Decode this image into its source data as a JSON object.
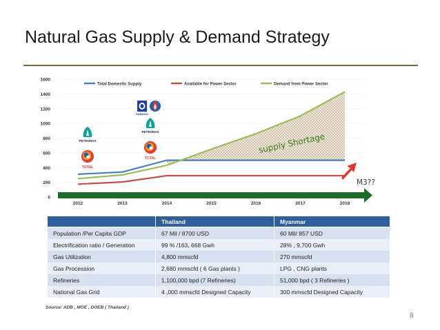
{
  "slide": {
    "title": "Natural Gas Supply & Demand Strategy",
    "page_number": "8",
    "source": "Source: ADB , MOE , DOEB ( Thailand )"
  },
  "colors": {
    "supply": "#4a7ebb",
    "power": "#c0504d",
    "demand": "#9bbb59",
    "arrow": "#1e6b2a",
    "shortage_text": "#3a7a1a",
    "red_arrow": "#d9382d",
    "table_header": "#2f5f9a"
  },
  "logos": {
    "petronas": "PETRONAS",
    "total": "TOTAL",
    "daewoo": "DAEWOO"
  },
  "chart_data": {
    "type": "line",
    "x": [
      2012,
      2013,
      2014,
      2015,
      2016,
      2017,
      2018
    ],
    "series": [
      {
        "name": "Total Domestic Supply",
        "values": [
          310,
          340,
          500,
          500,
          500,
          500,
          500
        ]
      },
      {
        "name": "Available for Power Sector",
        "values": [
          175,
          205,
          290,
          290,
          290,
          290,
          290
        ]
      },
      {
        "name": "Demand from Power Sector",
        "values": [
          250,
          300,
          430,
          650,
          860,
          1100,
          1430
        ]
      }
    ],
    "ylim": [
      0,
      1600
    ],
    "yticks": [
      "0",
      "200",
      "400",
      "600",
      "800",
      "1000",
      "1200",
      "1400",
      "1600"
    ],
    "xticks": [
      "2012",
      "2013",
      "2014",
      "2015",
      "2016",
      "2017",
      "2018"
    ],
    "legend_position": "top",
    "annotations": {
      "shortage": "supply Shortage",
      "m3": "M3??"
    }
  },
  "table": {
    "headers": [
      "",
      "Thailand",
      "Myanmar"
    ],
    "rows": [
      [
        "Population /Per Capita GDP",
        "67    Mil / 8700 USD",
        "60 Mil/ 857 USD"
      ],
      [
        "Electrification ratio /  Generation",
        "99 % /163, 668 Gwh",
        "28% , 9,700 Gwh"
      ],
      [
        "Gas Utilization",
        "4,800 mmscfd",
        "270 mmscfd"
      ],
      [
        "Gas Procession",
        "2,680 mmscfd  ( 6 Gas plants )",
        "LPG , CNG plants"
      ],
      [
        "Refineries",
        "1,100,000 bpd (7 Refineries)",
        "51,000 bpd ( 3 Refineries )"
      ],
      [
        "National Gas Grid",
        "4 ,000 mmscfd Designed Capacity",
        "300 mmscfd Designed Capacity"
      ]
    ]
  }
}
